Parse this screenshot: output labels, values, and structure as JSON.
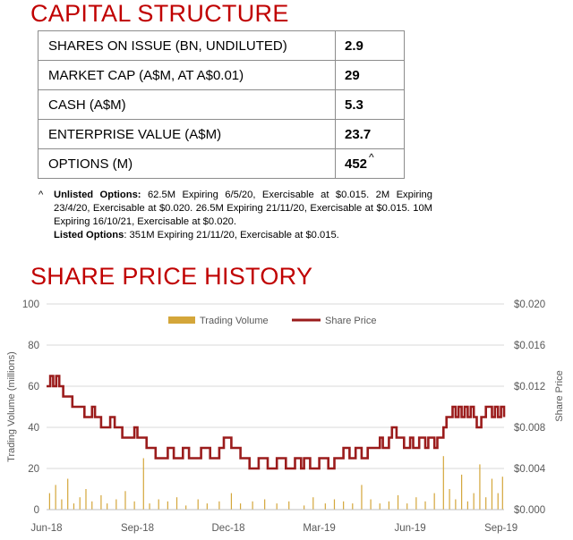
{
  "capital": {
    "heading": "CAPITAL STRUCTURE",
    "rows": [
      {
        "label": "SHARES ON ISSUE (BN, UNDILUTED)",
        "value": "2.9",
        "mark": ""
      },
      {
        "label": "MARKET CAP (A$M, AT A$0.01)",
        "value": "29",
        "mark": ""
      },
      {
        "label": "CASH (A$M)",
        "value": "5.3",
        "mark": ""
      },
      {
        "label": "ENTERPRISE VALUE (A$M)",
        "value": "23.7",
        "mark": ""
      },
      {
        "label": "OPTIONS (M)",
        "value": "452",
        "mark": "^"
      }
    ]
  },
  "notes": {
    "mark": "^",
    "unlisted_label": "Unlisted Options:",
    "unlisted_text": " 62.5M Expiring 6/5/20, Exercisable at $0.015. 2M Expiring 23/4/20, Exercisable at $0.020. 26.5M Expiring 21/11/20, Exercisable at $0.015. 10M Expiring 16/10/21, Exercisable at $0.020.",
    "listed_label": "Listed Options",
    "listed_text": ": 351M Expiring 21/11/20, Exercisable at $0.015."
  },
  "chart_heading": "SHARE PRICE HISTORY",
  "chart_data": {
    "type": "bar+line",
    "title": "",
    "xlabel": "",
    "ylabel_left": "Trading Volume (millions)",
    "ylabel_right": "Share Price",
    "ylim_left": [
      0,
      100
    ],
    "ylim_right": [
      0,
      0.02
    ],
    "yticks_left": [
      "0",
      "20",
      "40",
      "60",
      "80",
      "100"
    ],
    "yticks_right": [
      "$0.000",
      "$0.004",
      "$0.008",
      "$0.012",
      "$0.016",
      "$0.020"
    ],
    "xticks": [
      "Jun-18",
      "Sep-18",
      "Dec-18",
      "Mar-19",
      "Jun-19",
      "Sep-19"
    ],
    "x_range_months": [
      0,
      15.1
    ],
    "legend": {
      "position": "top-center",
      "volume_label": "Trading Volume",
      "price_label": "Share Price"
    },
    "grid": true,
    "colors": {
      "volume": "#d4a63a",
      "price": "#9b1c1c",
      "grid": "#d9d9d9",
      "heading": "#c00000"
    },
    "price": [
      [
        0.0,
        0.012
      ],
      [
        0.12,
        0.013
      ],
      [
        0.22,
        0.012
      ],
      [
        0.32,
        0.013
      ],
      [
        0.42,
        0.012
      ],
      [
        0.55,
        0.011
      ],
      [
        0.7,
        0.011
      ],
      [
        0.85,
        0.01
      ],
      [
        1.0,
        0.01
      ],
      [
        1.15,
        0.01
      ],
      [
        1.25,
        0.009
      ],
      [
        1.4,
        0.009
      ],
      [
        1.5,
        0.01
      ],
      [
        1.6,
        0.009
      ],
      [
        1.7,
        0.009
      ],
      [
        1.8,
        0.008
      ],
      [
        2.0,
        0.008
      ],
      [
        2.1,
        0.009
      ],
      [
        2.25,
        0.008
      ],
      [
        2.4,
        0.008
      ],
      [
        2.5,
        0.007
      ],
      [
        2.8,
        0.007
      ],
      [
        2.9,
        0.008
      ],
      [
        3.0,
        0.007
      ],
      [
        3.2,
        0.007
      ],
      [
        3.3,
        0.006
      ],
      [
        3.5,
        0.006
      ],
      [
        3.6,
        0.005
      ],
      [
        3.9,
        0.005
      ],
      [
        4.0,
        0.006
      ],
      [
        4.2,
        0.005
      ],
      [
        4.4,
        0.005
      ],
      [
        4.5,
        0.006
      ],
      [
        4.7,
        0.005
      ],
      [
        5.0,
        0.005
      ],
      [
        5.1,
        0.006
      ],
      [
        5.3,
        0.006
      ],
      [
        5.4,
        0.005
      ],
      [
        5.6,
        0.005
      ],
      [
        5.7,
        0.006
      ],
      [
        5.85,
        0.007
      ],
      [
        6.0,
        0.007
      ],
      [
        6.1,
        0.006
      ],
      [
        6.3,
        0.006
      ],
      [
        6.4,
        0.005
      ],
      [
        6.6,
        0.005
      ],
      [
        6.7,
        0.004
      ],
      [
        6.9,
        0.004
      ],
      [
        7.0,
        0.005
      ],
      [
        7.2,
        0.005
      ],
      [
        7.3,
        0.004
      ],
      [
        7.5,
        0.004
      ],
      [
        7.6,
        0.005
      ],
      [
        7.8,
        0.005
      ],
      [
        7.9,
        0.004
      ],
      [
        8.1,
        0.004
      ],
      [
        8.2,
        0.005
      ],
      [
        8.4,
        0.004
      ],
      [
        8.5,
        0.005
      ],
      [
        8.7,
        0.004
      ],
      [
        8.9,
        0.004
      ],
      [
        9.0,
        0.005
      ],
      [
        9.2,
        0.005
      ],
      [
        9.3,
        0.004
      ],
      [
        9.5,
        0.005
      ],
      [
        9.7,
        0.005
      ],
      [
        9.8,
        0.006
      ],
      [
        10.0,
        0.005
      ],
      [
        10.2,
        0.006
      ],
      [
        10.4,
        0.005
      ],
      [
        10.6,
        0.006
      ],
      [
        10.8,
        0.006
      ],
      [
        11.0,
        0.007
      ],
      [
        11.1,
        0.006
      ],
      [
        11.3,
        0.007
      ],
      [
        11.4,
        0.008
      ],
      [
        11.55,
        0.007
      ],
      [
        11.7,
        0.007
      ],
      [
        11.8,
        0.006
      ],
      [
        12.0,
        0.007
      ],
      [
        12.1,
        0.006
      ],
      [
        12.3,
        0.007
      ],
      [
        12.5,
        0.006
      ],
      [
        12.6,
        0.007
      ],
      [
        12.8,
        0.006
      ],
      [
        12.9,
        0.007
      ],
      [
        13.1,
        0.008
      ],
      [
        13.2,
        0.009
      ],
      [
        13.4,
        0.01
      ],
      [
        13.5,
        0.009
      ],
      [
        13.6,
        0.01
      ],
      [
        13.7,
        0.009
      ],
      [
        13.8,
        0.01
      ],
      [
        13.9,
        0.009
      ],
      [
        14.0,
        0.01
      ],
      [
        14.1,
        0.009
      ],
      [
        14.2,
        0.008
      ],
      [
        14.35,
        0.009
      ],
      [
        14.5,
        0.01
      ],
      [
        14.6,
        0.01
      ],
      [
        14.7,
        0.009
      ],
      [
        14.8,
        0.01
      ],
      [
        14.9,
        0.009
      ],
      [
        15.0,
        0.01
      ],
      [
        15.1,
        0.009
      ]
    ],
    "volume": [
      [
        0.1,
        8
      ],
      [
        0.3,
        12
      ],
      [
        0.5,
        5
      ],
      [
        0.7,
        15
      ],
      [
        0.9,
        3
      ],
      [
        1.1,
        6
      ],
      [
        1.3,
        10
      ],
      [
        1.5,
        4
      ],
      [
        1.8,
        7
      ],
      [
        2.0,
        3
      ],
      [
        2.3,
        5
      ],
      [
        2.6,
        9
      ],
      [
        2.9,
        4
      ],
      [
        3.2,
        25
      ],
      [
        3.4,
        3
      ],
      [
        3.7,
        5
      ],
      [
        4.0,
        4
      ],
      [
        4.3,
        6
      ],
      [
        4.6,
        2
      ],
      [
        5.0,
        5
      ],
      [
        5.3,
        3
      ],
      [
        5.7,
        4
      ],
      [
        6.1,
        8
      ],
      [
        6.4,
        3
      ],
      [
        6.8,
        4
      ],
      [
        7.2,
        5
      ],
      [
        7.6,
        3
      ],
      [
        8.0,
        4
      ],
      [
        8.5,
        2
      ],
      [
        8.8,
        6
      ],
      [
        9.2,
        3
      ],
      [
        9.5,
        5
      ],
      [
        9.8,
        4
      ],
      [
        10.1,
        3
      ],
      [
        10.4,
        12
      ],
      [
        10.7,
        5
      ],
      [
        11.0,
        3
      ],
      [
        11.3,
        4
      ],
      [
        11.6,
        7
      ],
      [
        11.9,
        3
      ],
      [
        12.2,
        6
      ],
      [
        12.5,
        4
      ],
      [
        12.8,
        8
      ],
      [
        13.1,
        26
      ],
      [
        13.3,
        10
      ],
      [
        13.5,
        5
      ],
      [
        13.7,
        17
      ],
      [
        13.9,
        4
      ],
      [
        14.1,
        8
      ],
      [
        14.3,
        22
      ],
      [
        14.5,
        6
      ],
      [
        14.7,
        15
      ],
      [
        14.9,
        8
      ],
      [
        15.05,
        16
      ]
    ]
  }
}
